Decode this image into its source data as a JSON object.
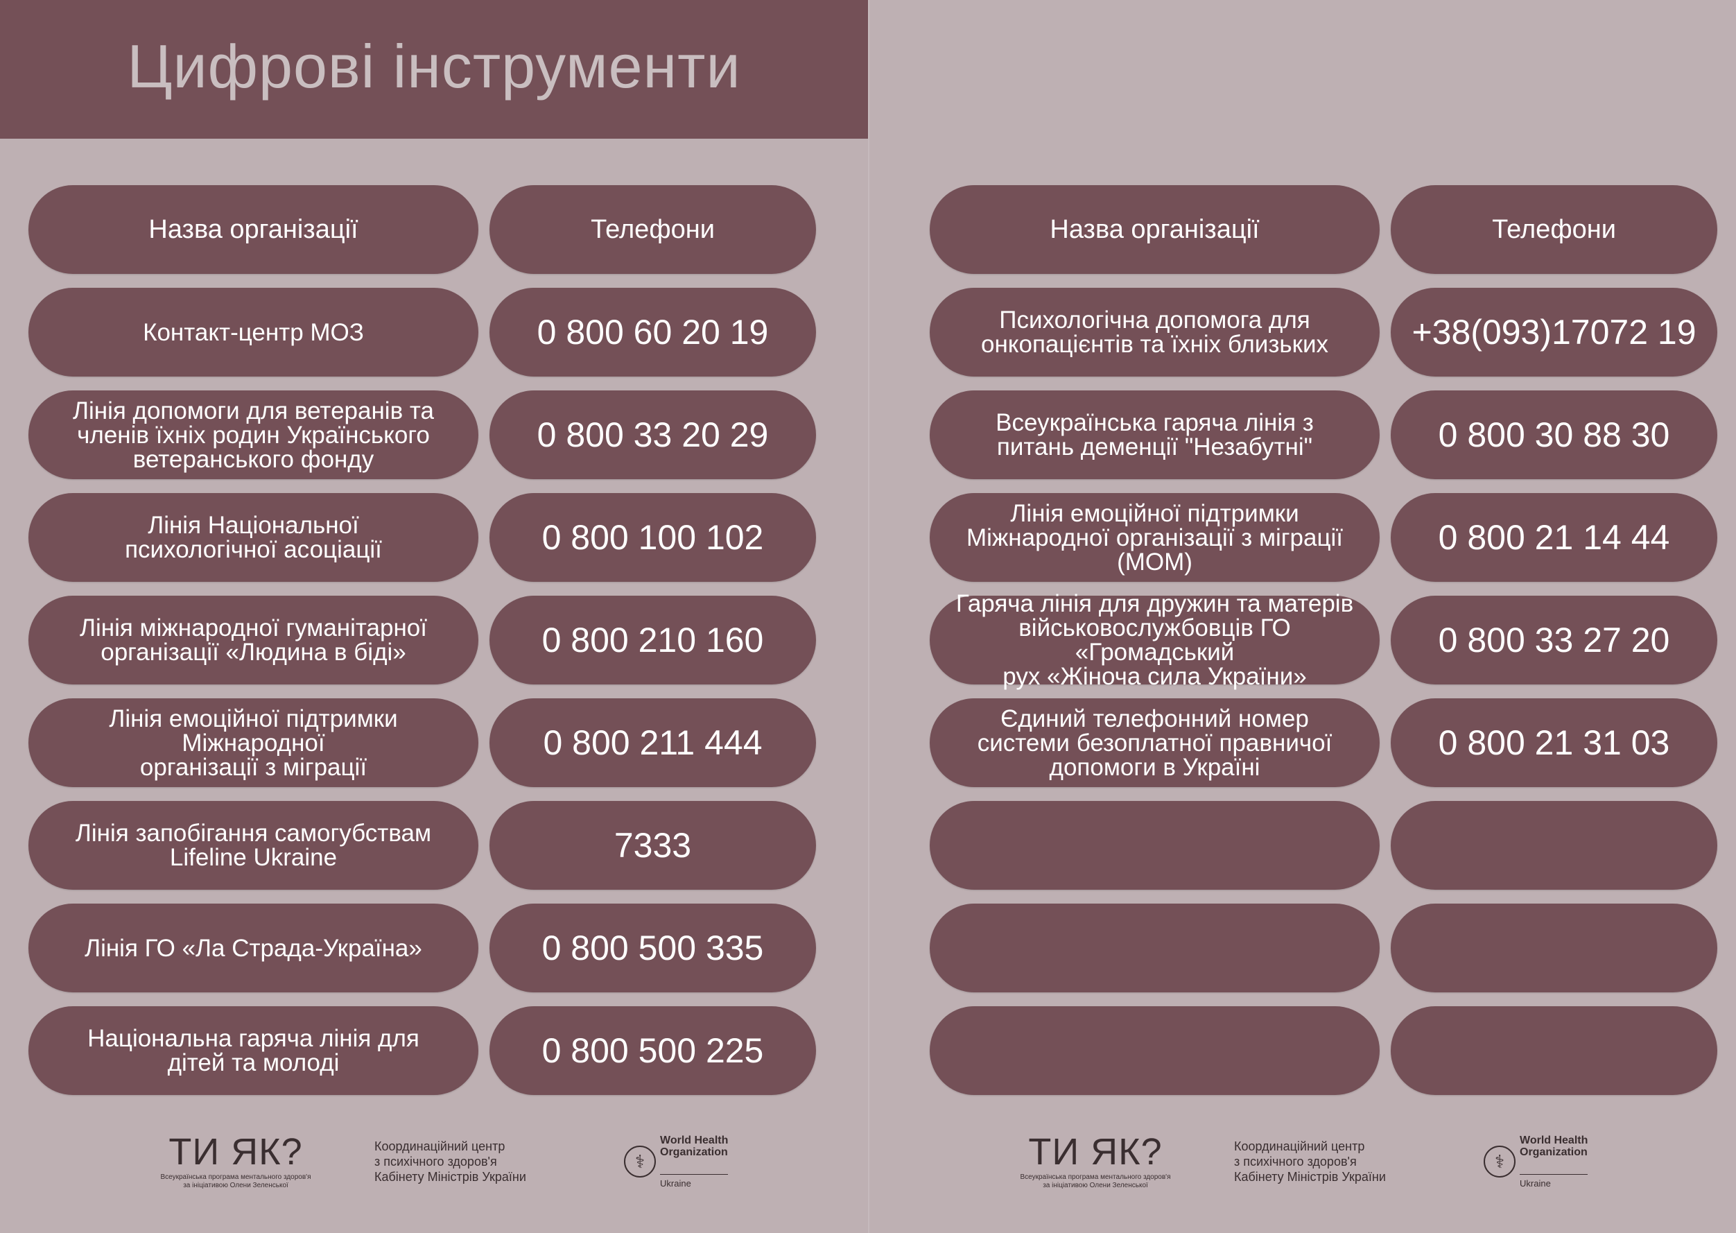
{
  "title": "Цифрові інструменти",
  "columns": {
    "name": "Назва організації",
    "phone": "Телефони"
  },
  "colors": {
    "header_bg": "#745057",
    "page_bg": "#beb0b3",
    "pill": "#745057"
  },
  "left_rows": [
    {
      "name": "Контакт-центр МОЗ",
      "phone": "0 800 60 20 19"
    },
    {
      "name": "Лінія допомоги для ветеранів та\nчленів їхніх родин Українського\nветеранського фонду",
      "phone": "0 800 33 20 29"
    },
    {
      "name": "Лінія Національної\nпсихологічної асоціації",
      "phone": "0 800 100 102"
    },
    {
      "name": "Лінія міжнародної гуманітарної\nорганізації «Людина в біді»",
      "phone": "0 800 210 160"
    },
    {
      "name": "Лінія емоційної підтримки\nМіжнародної\nорганізації з міграції",
      "phone": "0 800 211 444"
    },
    {
      "name": "Лінія запобігання самогубствам\nLifeline Ukraine",
      "phone": "7333"
    },
    {
      "name": "Лінія ГО «Ла Страда-Україна»",
      "phone": "0 800 500 335"
    },
    {
      "name": "Національна гаряча лінія для\nдітей та молоді",
      "phone": "0 800 500 225"
    }
  ],
  "right_rows": [
    {
      "name": "Психологічна допомога для\nонкопацієнтів та їхніх близьких",
      "phone": "+38(093)17072 19"
    },
    {
      "name": "Всеукраїнська гаряча лінія з\nпитань деменції \"Незабутні\"",
      "phone": "0 800 30 88 30"
    },
    {
      "name": "Лінія емоційної підтримки\nМіжнародної організації з міграції\n(МОМ)",
      "phone": "0 800 21 14 44"
    },
    {
      "name": "Гаряча лінія для дружин та матерів\nвійськовослужбовців ГО «Громадський\nрух «Жіноча сила України»",
      "phone": "0 800 33 27 20"
    },
    {
      "name": "Єдиний телефонний номер\nсистеми безоплатної правничої\nдопомоги в Україні",
      "phone": "0 800 21 31 03"
    },
    {
      "name": "",
      "phone": ""
    },
    {
      "name": "",
      "phone": ""
    },
    {
      "name": "",
      "phone": ""
    }
  ],
  "footer": {
    "tiyak_logo": "ТИ ЯК?",
    "tiyak_sub": "Всеукраїнська програма ментального здоров'я\nза ініціативою Олени Зеленської",
    "coord_center": "Координаційний центр\nз психічного здоров'я\nКабінету Міністрів України",
    "who_name": "World Health\nOrganization",
    "who_country": "Ukraine"
  }
}
